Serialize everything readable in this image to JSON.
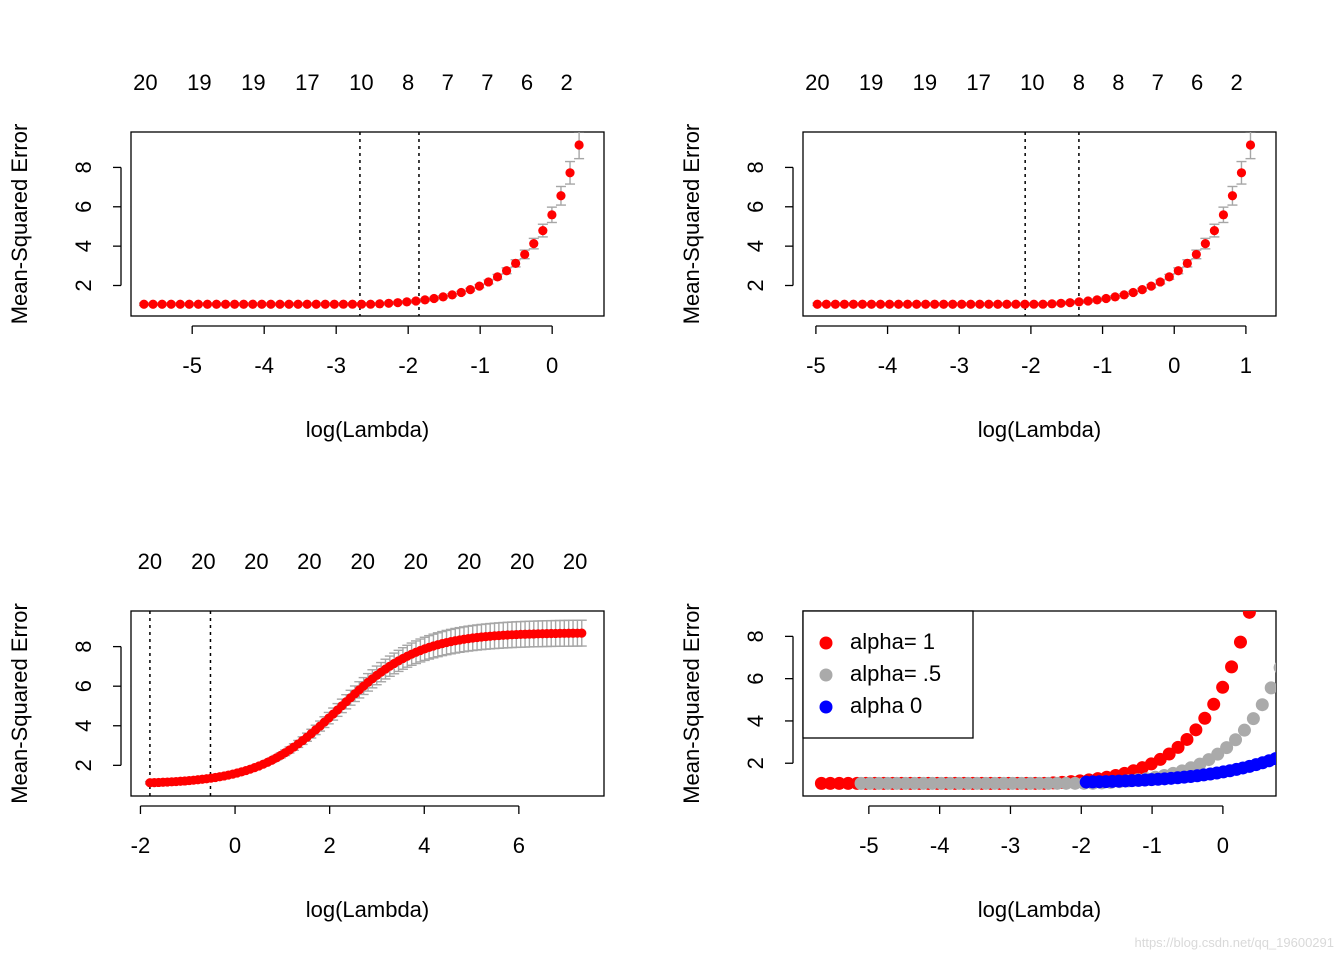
{
  "watermark": "https://blog.csdn.net/qq_19600291",
  "colors": {
    "point": "#ff0000",
    "errorbar": "#a6a6a6",
    "vline": "#000000",
    "alpha1": "#ff0000",
    "alpha05": "#aaaaaa",
    "alpha0": "#0000ff"
  },
  "chart_data": [
    {
      "id": "p1",
      "type": "scatter",
      "title": "",
      "xlabel": "log(Lambda)",
      "ylabel": "Mean-Squared Error",
      "xlim": [
        -5.85,
        0.72
      ],
      "ylim": [
        0.45,
        9.8
      ],
      "xticks": [
        -5,
        -4,
        -3,
        -2,
        -1,
        0
      ],
      "yticks": [
        2,
        4,
        6,
        8
      ],
      "top_counts": {
        "x": [
          -5.65,
          -4.9,
          -4.15,
          -3.4,
          -2.65,
          -2.0,
          -1.45,
          -0.9,
          -0.35,
          0.2
        ],
        "labels": [
          "20",
          "19",
          "19",
          "17",
          "10",
          "8",
          "7",
          "7",
          "6",
          "2"
        ]
      },
      "vlines": [
        -2.67,
        -1.85
      ],
      "curve": {
        "kind": "lasso",
        "x_min": -5.67,
        "x_max": 0.5,
        "n": 50,
        "base": 1.05,
        "k": 1.5,
        "x0": -2.5,
        "amp": 0.11
      },
      "error_bars": true
    },
    {
      "id": "p2",
      "type": "scatter",
      "title": "",
      "xlabel": "log(Lambda)",
      "ylabel": "Mean-Squared Error",
      "xlim": [
        -5.18,
        1.42
      ],
      "ylim": [
        0.45,
        9.8
      ],
      "xticks": [
        -5,
        -4,
        -3,
        -2,
        -1,
        0,
        1
      ],
      "yticks": [
        2,
        4,
        6,
        8
      ],
      "top_counts": {
        "x": [
          -4.98,
          -4.23,
          -3.48,
          -2.73,
          -1.98,
          -1.33,
          -0.78,
          -0.23,
          0.32,
          0.87
        ],
        "labels": [
          "20",
          "19",
          "19",
          "17",
          "10",
          "8",
          "8",
          "7",
          "6",
          "2"
        ]
      },
      "vlines": [
        -2.08,
        -1.33
      ],
      "curve": {
        "kind": "lasso",
        "x_min": -4.98,
        "x_max": 1.19,
        "n": 50,
        "base": 1.05,
        "k": 1.5,
        "x0": -1.81,
        "amp": 0.11
      },
      "error_bars": true
    },
    {
      "id": "p3",
      "type": "scatter",
      "title": "",
      "xlabel": "log(Lambda)",
      "ylabel": "Mean-Squared Error",
      "xlim": [
        -2.2,
        7.8
      ],
      "ylim": [
        0.45,
        9.8
      ],
      "xticks": [
        -2,
        0,
        2,
        4,
        6
      ],
      "yticks": [
        2,
        4,
        6,
        8
      ],
      "top_counts": {
        "x": [
          -1.8,
          -0.67,
          0.45,
          1.57,
          2.7,
          3.82,
          4.95,
          6.07,
          7.19
        ],
        "labels": [
          "20",
          "20",
          "20",
          "20",
          "20",
          "20",
          "20",
          "20",
          "20"
        ]
      },
      "vlines": [
        -1.8,
        -0.52
      ],
      "curve": {
        "kind": "ridge",
        "x_min": -1.8,
        "x_max": 7.33,
        "n": 100,
        "lo": 1.05,
        "hi": 8.7,
        "x0": 2.2,
        "s": 0.85
      },
      "error_bars": true
    },
    {
      "id": "p4",
      "type": "scatter",
      "title": "",
      "xlabel": "log(Lambda)",
      "ylabel": "Mean-Squared Error",
      "xlim": [
        -5.93,
        0.75
      ],
      "ylim": [
        0.45,
        9.2
      ],
      "xticks": [
        -5,
        -4,
        -3,
        -2,
        -1,
        0
      ],
      "yticks": [
        2,
        4,
        6,
        8
      ],
      "legend": {
        "position": "top-left",
        "items": [
          {
            "label": "alpha= 1",
            "color": "#ff0000"
          },
          {
            "label": "alpha= .5",
            "color": "#aaaaaa"
          },
          {
            "label": "alpha 0",
            "color": "#0000ff"
          }
        ]
      },
      "series": [
        {
          "name": "alpha= 1",
          "color": "#ff0000",
          "curve": {
            "kind": "lasso",
            "x_min": -5.67,
            "x_max": 0.5,
            "n": 50,
            "base": 1.05,
            "k": 1.5,
            "x0": -2.5,
            "amp": 0.11
          }
        },
        {
          "name": "alpha= .5",
          "color": "#aaaaaa",
          "curve": {
            "kind": "lasso",
            "x_min": -5.11,
            "x_max": 1.06,
            "n": 50,
            "base": 1.05,
            "k": 1.5,
            "x0": -1.81,
            "amp": 0.11
          }
        },
        {
          "name": "alpha 0",
          "color": "#0000ff",
          "curve": {
            "kind": "ridge",
            "x_min": -1.93,
            "x_max": 7.2,
            "n": 100,
            "lo": 1.05,
            "hi": 8.7,
            "x0": 2.2,
            "s": 0.85
          }
        }
      ],
      "error_bars": false
    }
  ]
}
